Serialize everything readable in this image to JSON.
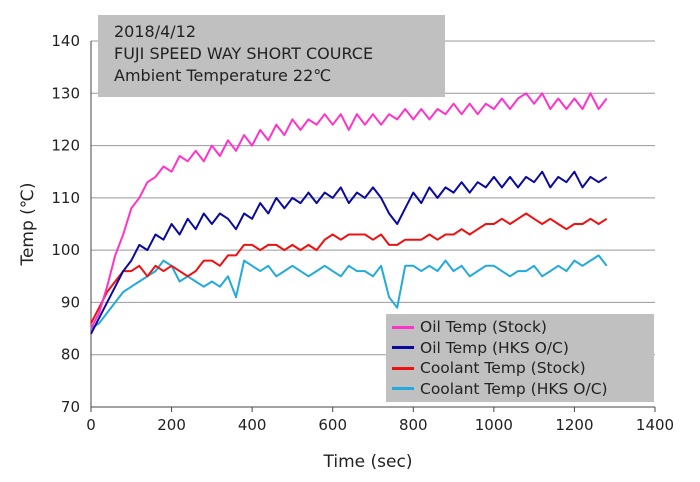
{
  "chart_data": {
    "type": "line",
    "annotation": [
      "2018/4/12",
      "FUJI SPEED WAY SHORT COURCE",
      "Ambient Temperature  22℃"
    ],
    "xlabel": "Time (sec)",
    "ylabel": "Temp (℃)",
    "xlim": [
      0,
      1400
    ],
    "ylim": [
      70,
      140
    ],
    "xticks": [
      "0",
      "200",
      "400",
      "600",
      "800",
      "1000",
      "1200",
      "1400"
    ],
    "yticks": [
      "70",
      "80",
      "90",
      "100",
      "110",
      "120",
      "130",
      "140"
    ],
    "grid": "horizontal",
    "legend_position": "bottom-right",
    "x_start": 0,
    "x_step": 20,
    "series": [
      {
        "name": "Oil Temp (Stock)",
        "color": "#ff33cc",
        "values": [
          85,
          88,
          93,
          99,
          103,
          108,
          110,
          113,
          114,
          116,
          115,
          118,
          117,
          119,
          117,
          120,
          118,
          121,
          119,
          122,
          120,
          123,
          121,
          124,
          122,
          125,
          123,
          125,
          124,
          126,
          124,
          126,
          123,
          126,
          124,
          126,
          124,
          126,
          125,
          127,
          125,
          127,
          125,
          127,
          126,
          128,
          126,
          128,
          126,
          128,
          127,
          129,
          127,
          129,
          130,
          128,
          130,
          127,
          129,
          127,
          129,
          127,
          130,
          127,
          129
        ]
      },
      {
        "name": "Oil Temp (HKS O/C)",
        "color": "#0a0aa0",
        "values": [
          84,
          87,
          90,
          93,
          96,
          98,
          101,
          100,
          103,
          102,
          105,
          103,
          106,
          104,
          107,
          105,
          107,
          106,
          104,
          107,
          106,
          109,
          107,
          110,
          108,
          110,
          109,
          111,
          109,
          111,
          110,
          112,
          109,
          111,
          110,
          112,
          110,
          107,
          105,
          108,
          111,
          109,
          112,
          110,
          112,
          111,
          113,
          111,
          113,
          112,
          114,
          112,
          114,
          112,
          114,
          113,
          115,
          112,
          114,
          113,
          115,
          112,
          114,
          113,
          114
        ]
      },
      {
        "name": "Coolant Temp (Stock)",
        "color": "#ee1111",
        "values": [
          86,
          89,
          92,
          94,
          96,
          96,
          97,
          95,
          97,
          96,
          97,
          96,
          95,
          96,
          98,
          98,
          97,
          99,
          99,
          101,
          101,
          100,
          101,
          101,
          100,
          101,
          100,
          101,
          100,
          102,
          103,
          102,
          103,
          103,
          103,
          102,
          103,
          101,
          101,
          102,
          102,
          102,
          103,
          102,
          103,
          103,
          104,
          103,
          104,
          105,
          105,
          106,
          105,
          106,
          107,
          106,
          105,
          106,
          105,
          104,
          105,
          105,
          106,
          105,
          106
        ]
      },
      {
        "name": "Coolant Temp (HKS O/C)",
        "color": "#22aadd",
        "values": [
          85,
          86,
          88,
          90,
          92,
          93,
          94,
          95,
          96,
          98,
          97,
          94,
          95,
          94,
          93,
          94,
          93,
          95,
          91,
          98,
          97,
          96,
          97,
          95,
          96,
          97,
          96,
          95,
          96,
          97,
          96,
          95,
          97,
          96,
          96,
          95,
          97,
          91,
          89,
          97,
          97,
          96,
          97,
          96,
          98,
          96,
          97,
          95,
          96,
          97,
          97,
          96,
          95,
          96,
          96,
          97,
          95,
          96,
          97,
          96,
          98,
          97,
          98,
          99,
          97
        ]
      }
    ]
  }
}
